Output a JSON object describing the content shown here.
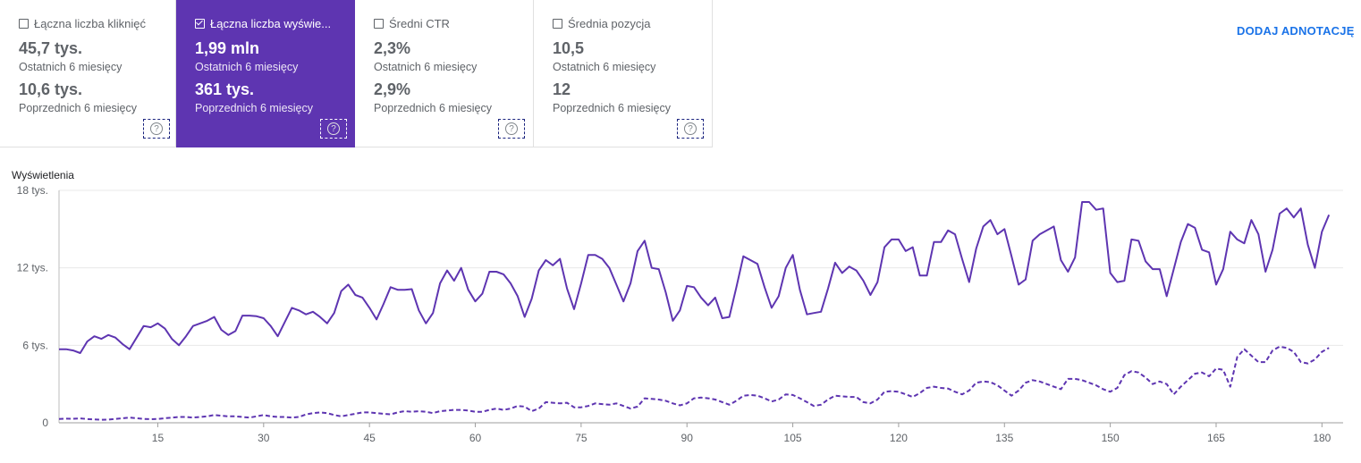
{
  "cards": [
    {
      "label": "Łączna liczba kliknięć",
      "checked": false,
      "value_current": "45,7 tys.",
      "period_current": "Ostatnich 6 miesięcy",
      "value_previous": "10,6 tys.",
      "period_previous": "Poprzednich 6 miesięcy",
      "help_icon": "help-icon"
    },
    {
      "label": "Łączna liczba wyświe...",
      "checked": true,
      "value_current": "1,99 mln",
      "period_current": "Ostatnich 6 miesięcy",
      "value_previous": "361 tys.",
      "period_previous": "Poprzednich 6 miesięcy",
      "help_icon": "help-icon"
    },
    {
      "label": "Średni CTR",
      "checked": false,
      "value_current": "2,3%",
      "period_current": "Ostatnich 6 miesięcy",
      "value_previous": "2,9%",
      "period_previous": "Poprzednich 6 miesięcy",
      "help_icon": "help-icon"
    },
    {
      "label": "Średnia pozycja",
      "checked": false,
      "value_current": "10,5",
      "period_current": "Ostatnich 6 miesięcy",
      "value_previous": "12",
      "period_previous": "Poprzednich 6 miesięcy",
      "help_icon": "help-icon"
    }
  ],
  "add_annotation_label": "DODAJ ADNOTACJĘ",
  "colors": {
    "accent": "#5e35b1",
    "link": "#1a73e8"
  },
  "chart_data": {
    "type": "line",
    "ylabel": "Wyświetlenia",
    "ylim": [
      0,
      18000
    ],
    "yticks": [
      0,
      6000,
      12000,
      18000
    ],
    "ytick_labels": [
      "0",
      "6 tys.",
      "12 tys.",
      "18 tys."
    ],
    "xlim": [
      1,
      183
    ],
    "xticks": [
      15,
      30,
      45,
      60,
      75,
      90,
      105,
      120,
      135,
      150,
      165,
      180
    ],
    "grid": true,
    "series": [
      {
        "style": "solid",
        "values": [
          5700,
          5700,
          5600,
          5400,
          6300,
          6700,
          6500,
          6800,
          6600,
          6100,
          5700,
          6600,
          7500,
          7400,
          7700,
          7300,
          6500,
          6000,
          6700,
          7500,
          7700,
          7900,
          8200,
          7200,
          6800,
          7100,
          8300,
          8300,
          8250,
          8100,
          7500,
          6700,
          7800,
          8900,
          8700,
          8400,
          8600,
          8200,
          7700,
          8500,
          10200,
          10700,
          9900,
          9700,
          8900,
          8000,
          9200,
          10500,
          10300,
          10300,
          10350,
          8700,
          7700,
          8500,
          10800,
          11800,
          11000,
          12000,
          10300,
          9400,
          10000,
          11700,
          11700,
          11500,
          10800,
          9800,
          8200,
          9600,
          11800,
          12600,
          12200,
          12700,
          10400,
          8800,
          10800,
          13000,
          13000,
          12700,
          12000,
          10700,
          9400,
          10800,
          13300,
          14100,
          12000,
          11900,
          10100,
          7900,
          8700,
          10600,
          10500,
          9700,
          9100,
          9700,
          8100,
          8200,
          10500,
          12900,
          12600,
          12300,
          10500,
          8900,
          9800,
          12000,
          13000,
          10300,
          8400,
          8500,
          8600,
          10400,
          12400,
          11600,
          12100,
          11800,
          11000,
          9900,
          10900,
          13600,
          14200,
          14200,
          13300,
          13600,
          11400,
          11400,
          14000,
          14000,
          14900,
          14600,
          12700,
          10900,
          13500,
          15200,
          15700,
          14600,
          15000,
          12900,
          10700,
          11100,
          14100,
          14600,
          14900,
          15200,
          12600,
          11700,
          12800,
          17100,
          17100,
          16500,
          16600,
          11600,
          10900,
          11000,
          14200,
          14100,
          12500,
          11900,
          11900,
          9800,
          11900,
          14000,
          15400,
          15100,
          13400,
          13200,
          10700,
          11900,
          14800,
          14200,
          13900,
          15700,
          14600,
          11700,
          13400,
          16200,
          16600,
          15900,
          16600,
          13800,
          12000,
          14800,
          16100
        ]
      },
      {
        "style": "dashed",
        "values": [
          300,
          320,
          310,
          340,
          290,
          260,
          230,
          250,
          300,
          350,
          400,
          350,
          300,
          280,
          300,
          350,
          400,
          450,
          450,
          400,
          450,
          500,
          600,
          550,
          500,
          500,
          450,
          400,
          500,
          600,
          500,
          450,
          450,
          400,
          450,
          650,
          750,
          800,
          750,
          600,
          500,
          600,
          700,
          800,
          800,
          750,
          700,
          650,
          800,
          900,
          850,
          900,
          850,
          750,
          900,
          950,
          1000,
          1000,
          950,
          850,
          850,
          1000,
          1100,
          1000,
          1100,
          1300,
          1250,
          900,
          1100,
          1600,
          1550,
          1500,
          1550,
          1200,
          1200,
          1300,
          1500,
          1450,
          1400,
          1500,
          1300,
          1100,
          1250,
          1900,
          1850,
          1800,
          1700,
          1500,
          1350,
          1500,
          1900,
          1950,
          1900,
          1800,
          1600,
          1400,
          1700,
          2100,
          2150,
          2100,
          1900,
          1650,
          1800,
          2200,
          2150,
          1900,
          1600,
          1300,
          1400,
          1800,
          2100,
          2050,
          2000,
          2000,
          1600,
          1500,
          1800,
          2400,
          2450,
          2400,
          2200,
          2000,
          2300,
          2700,
          2800,
          2700,
          2650,
          2400,
          2200,
          2500,
          3100,
          3200,
          3150,
          2900,
          2500,
          2100,
          2500,
          3100,
          3300,
          3200,
          3000,
          2800,
          2600,
          3400,
          3400,
          3300,
          3100,
          2900,
          2600,
          2400,
          2700,
          3700,
          4000,
          3900,
          3500,
          3000,
          3200,
          3000,
          2200,
          2800,
          3300,
          3800,
          3900,
          3600,
          4200,
          4100,
          2800,
          5100,
          5700,
          5200,
          4700,
          4700,
          5600,
          5900,
          5800,
          5500,
          4700,
          4600,
          4900,
          5500,
          5800
        ]
      }
    ]
  }
}
